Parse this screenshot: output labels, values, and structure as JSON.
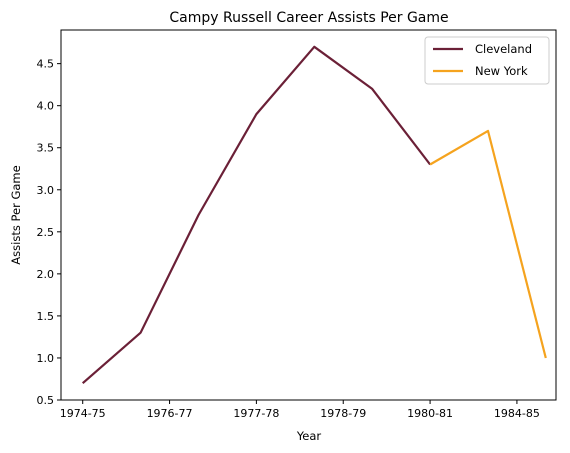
{
  "chart_data": {
    "type": "line",
    "title": "Campy Russell Career Assists Per Game",
    "xlabel": "Year",
    "ylabel": "Assists Per Game",
    "x_tick_labels": [
      "1974-75",
      "1976-77",
      "1977-78",
      "1978-79",
      "1980-81",
      "1984-85"
    ],
    "x_tick_positions": [
      0,
      1,
      2,
      3,
      4,
      5
    ],
    "xlim": [
      -0.25,
      5.45
    ],
    "ylim": [
      0.5,
      4.9
    ],
    "y_ticks": [
      0.5,
      1.0,
      1.5,
      2.0,
      2.5,
      3.0,
      3.5,
      4.0,
      4.5
    ],
    "y_tick_labels": [
      "0.5",
      "1.0",
      "1.5",
      "2.0",
      "2.5",
      "3.0",
      "3.5",
      "4.0",
      "4.5"
    ],
    "grid": false,
    "legend_placement": "top-right",
    "series": [
      {
        "name": "Cleveland",
        "color": "#6b2037",
        "x": [
          0,
          0.667,
          1.333,
          2.0,
          2.667,
          3.333,
          4.0
        ],
        "y": [
          0.7,
          1.3,
          2.7,
          3.9,
          4.7,
          4.2,
          3.3
        ]
      },
      {
        "name": "New York",
        "color": "#f5a31e",
        "x": [
          4.0,
          4.667,
          5.333
        ],
        "y": [
          3.3,
          3.7,
          1.0
        ]
      }
    ]
  }
}
